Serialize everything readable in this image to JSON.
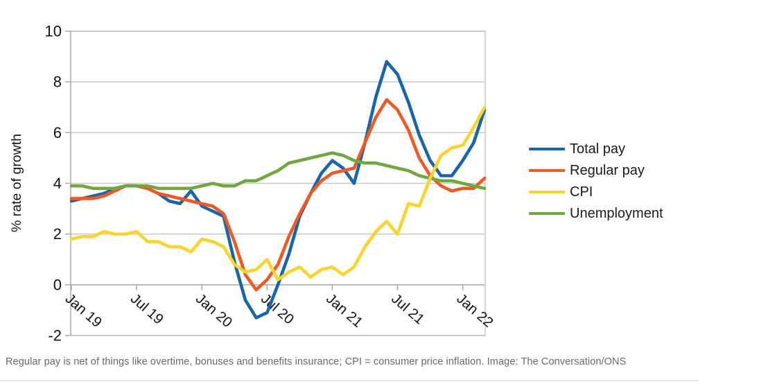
{
  "chart_data": {
    "type": "line",
    "title": "",
    "ylabel": "% rate of growth",
    "xlabel": "",
    "ylim": [
      -2,
      10
    ],
    "yticks": [
      10,
      8,
      6,
      4,
      2,
      0,
      -2
    ],
    "grid": true,
    "legend_position": "right",
    "x": [
      "Jan 19",
      "Feb 19",
      "Mar 19",
      "Apr 19",
      "May 19",
      "Jun 19",
      "Jul 19",
      "Aug 19",
      "Sep 19",
      "Oct 19",
      "Nov 19",
      "Dec 19",
      "Jan 20",
      "Feb 20",
      "Mar 20",
      "Apr 20",
      "May 20",
      "Jun 20",
      "Jul 20",
      "Aug 20",
      "Sep 20",
      "Oct 20",
      "Nov 20",
      "Dec 20",
      "Jan 21",
      "Feb 21",
      "Mar 21",
      "Apr 21",
      "May 21",
      "Jun 21",
      "Jul 21",
      "Aug 21",
      "Sep 21",
      "Oct 21",
      "Nov 21",
      "Dec 21",
      "Jan 22",
      "Feb 22",
      "Mar 22"
    ],
    "x_tick_labels": [
      "Jan 19",
      "Jul 19",
      "Jan 20",
      "Jul 20",
      "Jan 21",
      "Jul 21",
      "Jan 22"
    ],
    "x_tick_indices": [
      0,
      6,
      12,
      18,
      24,
      30,
      36
    ],
    "series": [
      {
        "name": "Total pay",
        "color": "#1766ad",
        "values": [
          3.3,
          3.4,
          3.5,
          3.6,
          3.8,
          3.9,
          3.9,
          3.8,
          3.6,
          3.3,
          3.2,
          3.7,
          3.1,
          2.9,
          2.7,
          0.9,
          -0.6,
          -1.3,
          -1.1,
          0.0,
          1.2,
          2.7,
          3.6,
          4.4,
          4.9,
          4.6,
          4.0,
          5.6,
          7.4,
          8.8,
          8.3,
          7.2,
          5.9,
          4.9,
          4.3,
          4.3,
          4.9,
          5.6,
          6.9
        ]
      },
      {
        "name": "Regular pay",
        "color": "#f25822",
        "values": [
          3.4,
          3.4,
          3.4,
          3.5,
          3.7,
          3.9,
          3.9,
          3.8,
          3.6,
          3.5,
          3.4,
          3.3,
          3.2,
          3.1,
          2.8,
          1.7,
          0.4,
          -0.2,
          0.2,
          0.8,
          1.9,
          2.8,
          3.6,
          4.1,
          4.4,
          4.5,
          4.6,
          5.6,
          6.6,
          7.3,
          6.9,
          6.1,
          5.0,
          4.3,
          3.9,
          3.7,
          3.8,
          3.8,
          4.2
        ]
      },
      {
        "name": "CPI",
        "color": "#fcd32b",
        "values": [
          1.8,
          1.9,
          1.9,
          2.1,
          2.0,
          2.0,
          2.1,
          1.7,
          1.7,
          1.5,
          1.5,
          1.3,
          1.8,
          1.7,
          1.5,
          0.8,
          0.5,
          0.6,
          1.0,
          0.2,
          0.5,
          0.7,
          0.3,
          0.6,
          0.7,
          0.4,
          0.7,
          1.5,
          2.1,
          2.5,
          2.0,
          3.2,
          3.1,
          4.2,
          5.1,
          5.4,
          5.5,
          6.2,
          7.0
        ]
      },
      {
        "name": "Unemployment",
        "color": "#70a83b",
        "values": [
          3.9,
          3.9,
          3.8,
          3.8,
          3.8,
          3.9,
          3.9,
          3.9,
          3.8,
          3.8,
          3.8,
          3.8,
          3.9,
          4.0,
          3.9,
          3.9,
          4.1,
          4.1,
          4.3,
          4.5,
          4.8,
          4.9,
          5.0,
          5.1,
          5.2,
          5.1,
          4.9,
          4.8,
          4.8,
          4.7,
          4.6,
          4.5,
          4.3,
          4.2,
          4.1,
          4.1,
          4.0,
          3.9,
          3.8
        ]
      }
    ],
    "colors": {
      "grid": "#c9c9c9",
      "axis": "#a9a9a9",
      "border": "#b9b9b9",
      "text": "#111111"
    }
  },
  "caption": "Regular pay is net of things like overtime, bonuses and benefits insurance; CPI = consumer price inflation. Image: The Conversation/ONS"
}
